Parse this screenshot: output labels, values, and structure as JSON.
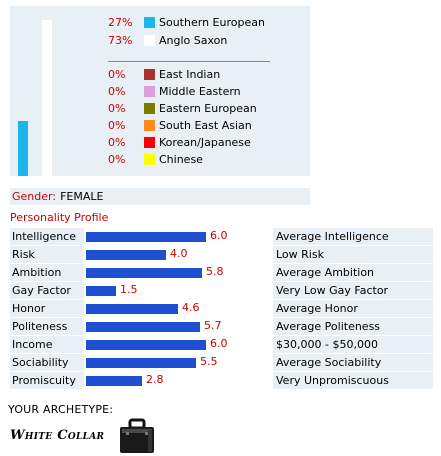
{
  "ethnicity": {
    "bar_fraction": 0.27,
    "bar_color": "#1cb6ec",
    "primary": [
      {
        "pct": "27%",
        "name": "Southern European",
        "color": "#1cb6ec"
      },
      {
        "pct": "73%",
        "name": "Anglo Saxon",
        "color": "#ffffff"
      }
    ],
    "secondary": [
      {
        "pct": "0%",
        "name": "East Indian",
        "color": "#a5332c"
      },
      {
        "pct": "0%",
        "name": "Middle Eastern",
        "color": "#dca0dc"
      },
      {
        "pct": "0%",
        "name": "Eastern European",
        "color": "#7b7b00"
      },
      {
        "pct": "0%",
        "name": "South East Asian",
        "color": "#ff8a1c"
      },
      {
        "pct": "0%",
        "name": "Korean/Japanese",
        "color": "#ff0000"
      },
      {
        "pct": "0%",
        "name": "Chinese",
        "color": "#ffff00"
      }
    ]
  },
  "gender": {
    "label": "Gender:",
    "value": "FEMALE"
  },
  "profile": {
    "title": "Personality Profile",
    "max_score": 6.5,
    "traits": [
      {
        "name": "Intelligence",
        "score": 6.0,
        "score_text": "6.0",
        "desc": "Average Intelligence"
      },
      {
        "name": "Risk",
        "score": 4.0,
        "score_text": "4.0",
        "desc": "Low Risk"
      },
      {
        "name": "Ambition",
        "score": 5.8,
        "score_text": "5.8",
        "desc": "Average Ambition"
      },
      {
        "name": "Gay Factor",
        "score": 1.5,
        "score_text": "1.5",
        "desc": "Very Low Gay Factor"
      },
      {
        "name": "Honor",
        "score": 4.6,
        "score_text": "4.6",
        "desc": "Average Honor"
      },
      {
        "name": "Politeness",
        "score": 5.7,
        "score_text": "5.7",
        "desc": "Average Politeness"
      },
      {
        "name": "Income",
        "score": 6.0,
        "score_text": "6.0",
        "desc": "$30,000 - $50,000"
      },
      {
        "name": "Sociability",
        "score": 5.5,
        "score_text": "5.5",
        "desc": "Average Sociability"
      },
      {
        "name": "Promiscuity",
        "score": 2.8,
        "score_text": "2.8",
        "desc": "Very Unpromiscuous"
      }
    ]
  },
  "archetype": {
    "label": "YOUR ARCHETYPE:",
    "name": "White Collar",
    "icon": "briefcase-icon"
  }
}
